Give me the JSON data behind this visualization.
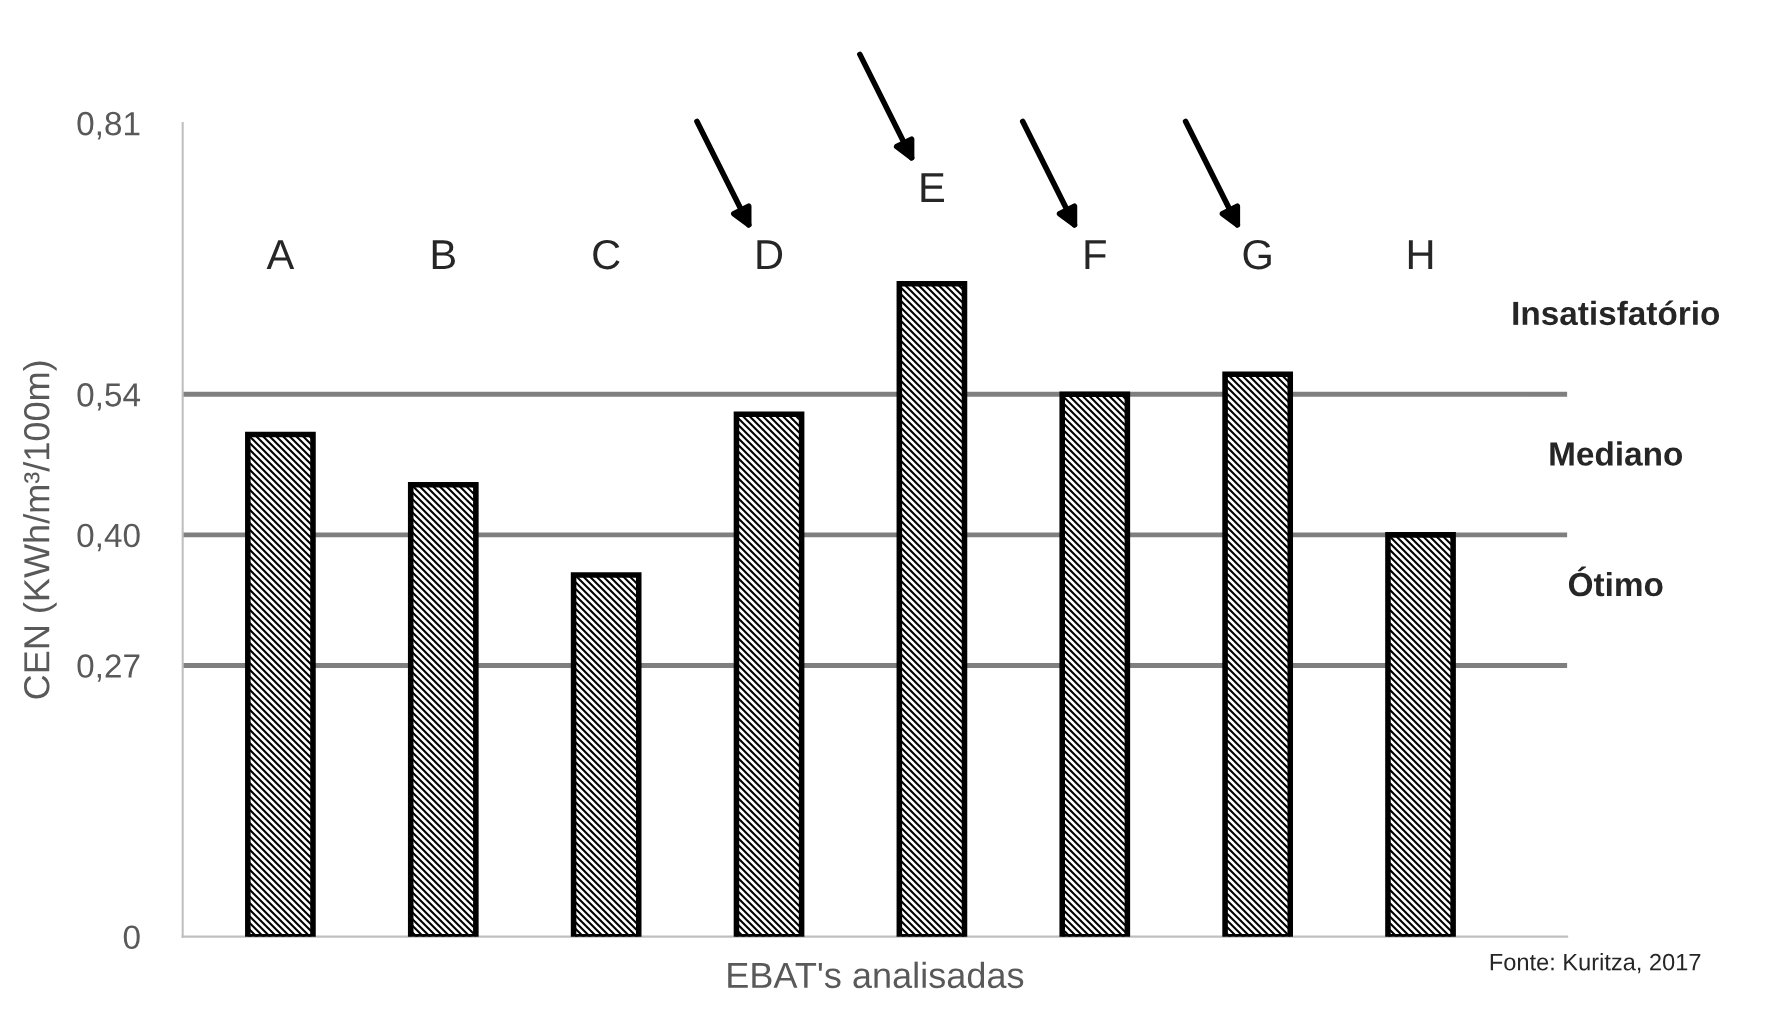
{
  "chart_data": {
    "type": "bar",
    "xlabel": "EBAT's analisadas",
    "ylabel": "CEN (KWh/m³/100m)",
    "categories": [
      "A",
      "B",
      "C",
      "D",
      "E",
      "F",
      "G",
      "H"
    ],
    "values": [
      0.5,
      0.45,
      0.36,
      0.52,
      0.65,
      0.54,
      0.56,
      0.4
    ],
    "color": "#000000",
    "ylim": [
      0,
      0.81
    ],
    "yticks": [
      {
        "value": 0,
        "label": "0"
      },
      {
        "value": 0.27,
        "label": "0,27"
      },
      {
        "value": 0.4,
        "label": "0,40"
      },
      {
        "value": 0.54,
        "label": "0,54"
      },
      {
        "value": 0.81,
        "label": "0,81"
      }
    ],
    "ref_lines": [
      {
        "axis": "y",
        "value": 0.27,
        "label": "Ótimo",
        "color": "#7f7f7f"
      },
      {
        "axis": "y",
        "value": 0.4,
        "label": "Mediano",
        "color": "#7f7f7f"
      },
      {
        "axis": "y",
        "value": 0.54,
        "label": "Insatisfatório",
        "color": "#7f7f7f"
      }
    ],
    "annotations": [
      "Fonte: Kuritza, 2017"
    ],
    "grid": false,
    "legend": false
  }
}
